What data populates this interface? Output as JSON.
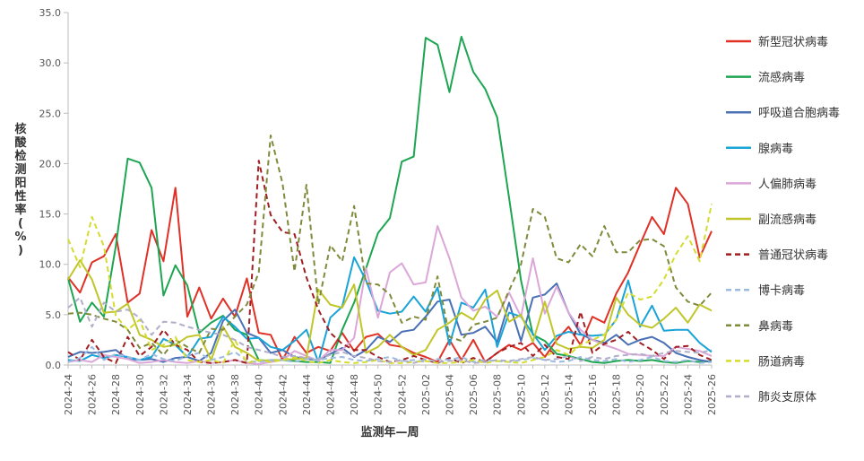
{
  "chart_data": {
    "type": "line",
    "xlabel": "监测年—周",
    "ylabel": "核酸检测阳性率(%)",
    "ylim": [
      0,
      35
    ],
    "yticks": [
      "0.0",
      "5.0",
      "10.0",
      "15.0",
      "20.0",
      "25.0",
      "30.0",
      "35.0"
    ],
    "ytick_values": [
      0,
      5,
      10,
      15,
      20,
      25,
      30,
      35
    ],
    "x": [
      "2024-24",
      "2024-25",
      "2024-26",
      "2024-27",
      "2024-28",
      "2024-29",
      "2024-30",
      "2024-31",
      "2024-32",
      "2024-33",
      "2024-34",
      "2024-35",
      "2024-36",
      "2024-37",
      "2024-38",
      "2024-39",
      "2024-40",
      "2024-41",
      "2024-42",
      "2024-43",
      "2024-44",
      "2024-45",
      "2024-46",
      "2024-47",
      "2024-48",
      "2024-49",
      "2024-50",
      "2024-51",
      "2024-52",
      "2025-01",
      "2025-02",
      "2025-03",
      "2025-04",
      "2025-05",
      "2025-06",
      "2025-07",
      "2025-08",
      "2025-09",
      "2025-10",
      "2025-11",
      "2025-12",
      "2025-13",
      "2025-14",
      "2025-15",
      "2025-16",
      "2025-17",
      "2025-18",
      "2025-19",
      "2025-20",
      "2025-21",
      "2025-22",
      "2025-23",
      "2025-24",
      "2025-25",
      "2025-26"
    ],
    "xtick_labels": [
      "2024-24",
      "2024-26",
      "2024-28",
      "2024-30",
      "2024-32",
      "2024-34",
      "2024-36",
      "2024-38",
      "2024-40",
      "2024-42",
      "2024-44",
      "2024-46",
      "2024-48",
      "2024-50",
      "2024-52",
      "2025-02",
      "2025-04",
      "2025-06",
      "2025-08",
      "2025-10",
      "2025-12",
      "2025-14",
      "2025-16",
      "2025-18",
      "2025-20",
      "2025-22",
      "2025-24",
      "2025-26"
    ],
    "grid": false,
    "legend_position": "right",
    "series": [
      {
        "name": "新型冠状病毒",
        "color": "#e03127",
        "dash": "solid",
        "values": [
          8.7,
          7.2,
          10.2,
          10.8,
          13.0,
          6.2,
          7.1,
          13.4,
          10.3,
          17.6,
          4.8,
          7.7,
          4.6,
          6.6,
          4.8,
          8.6,
          3.2,
          3.0,
          0.5,
          2.8,
          1.2,
          1.8,
          1.4,
          3.2,
          1.4,
          2.8,
          3.1,
          2.0,
          1.8,
          1.2,
          0.8,
          0.3,
          2.5,
          0.5,
          2.5,
          0.3,
          1.2,
          2.0,
          1.5,
          2.2,
          0.8,
          2.5,
          3.8,
          2.0,
          4.8,
          4.2,
          7.1,
          9.2,
          12.0,
          14.7,
          13.0,
          17.6,
          16.0,
          10.7,
          13.3
        ]
      },
      {
        "name": "流感病毒",
        "color": "#1ea552",
        "dash": "solid",
        "values": [
          8.6,
          4.3,
          6.2,
          4.8,
          11.8,
          20.5,
          20.1,
          17.6,
          6.9,
          9.9,
          7.9,
          3.2,
          4.2,
          4.9,
          3.5,
          3.0,
          0.5,
          0.4,
          0.5,
          0.4,
          0.3,
          0.3,
          0.2,
          3.5,
          6.2,
          9.6,
          13.1,
          14.6,
          20.2,
          20.7,
          32.5,
          31.8,
          27.1,
          32.6,
          29.1,
          27.4,
          24.6,
          16.6,
          8.4,
          3.0,
          2.4,
          1.1,
          0.9,
          0.6,
          0.3,
          0.2,
          0.4,
          0.5,
          0.4,
          0.5,
          0.3,
          0.2,
          0.4,
          0.3,
          0.4
        ]
      },
      {
        "name": "呼吸道合胞病毒",
        "color": "#4a70b5",
        "dash": "solid",
        "values": [
          0.8,
          1.3,
          1.2,
          1.3,
          1.5,
          0.6,
          0.5,
          0.6,
          0.3,
          0.7,
          0.8,
          0.4,
          1.2,
          4.4,
          5.5,
          3.2,
          2.7,
          1.2,
          1.5,
          0.8,
          0.6,
          0.5,
          1.1,
          1.7,
          0.8,
          1.5,
          2.8,
          2.3,
          3.3,
          3.5,
          4.8,
          6.3,
          6.5,
          3.0,
          3.2,
          3.8,
          2.3,
          6.2,
          2.4,
          6.7,
          7.0,
          8.1,
          5.2,
          3.1,
          2.5,
          2.2,
          3.0,
          2.0,
          2.5,
          2.8,
          2.2,
          1.2,
          0.8,
          0.5,
          0.3
        ]
      },
      {
        "name": "腺病毒",
        "color": "#1aa3d6",
        "dash": "solid",
        "values": [
          0.5,
          0.4,
          1.0,
          0.7,
          1.0,
          0.8,
          0.5,
          0.8,
          2.6,
          2.0,
          0.8,
          2.6,
          2.8,
          4.8,
          3.8,
          2.6,
          2.7,
          1.8,
          1.5,
          2.4,
          3.5,
          0.3,
          4.7,
          5.8,
          10.7,
          8.4,
          5.4,
          5.1,
          5.3,
          6.8,
          5.3,
          7.7,
          2.0,
          6.2,
          5.7,
          7.5,
          1.8,
          5.2,
          4.8,
          3.1,
          1.5,
          2.9,
          3.3,
          3.0,
          2.9,
          3.0,
          4.5,
          8.4,
          3.8,
          5.9,
          3.4,
          3.5,
          3.5,
          2.2,
          1.3
        ]
      },
      {
        "name": "人偏肺病毒",
        "color": "#dba7d8",
        "dash": "solid",
        "values": [
          0.3,
          0.5,
          0.3,
          1.0,
          0.8,
          0.6,
          0.2,
          0.3,
          0.5,
          0.3,
          0.2,
          0.4,
          0.2,
          0.3,
          0.5,
          0.2,
          0.1,
          0.3,
          0.5,
          1.4,
          0.9,
          0.4,
          1.5,
          1.5,
          2.7,
          9.6,
          4.7,
          9.2,
          10.1,
          8.0,
          8.2,
          13.8,
          10.6,
          6.7,
          5.4,
          5.8,
          4.8,
          7.2,
          4.8,
          10.6,
          5.1,
          7.8,
          5.2,
          3.5,
          2.5,
          2.0,
          1.6,
          1.1,
          1.0,
          0.9,
          0.9,
          1.8,
          1.6,
          1.4,
          0.9
        ]
      },
      {
        "name": "副流感病毒",
        "color": "#c0c62a",
        "dash": "solid",
        "values": [
          8.5,
          10.4,
          8.5,
          5.2,
          5.3,
          6.1,
          3.0,
          2.5,
          1.8,
          2.0,
          2.8,
          3.0,
          0.5,
          3.8,
          1.8,
          1.2,
          0.4,
          0.5,
          0.5,
          0.6,
          0.7,
          7.5,
          6.0,
          5.7,
          8.0,
          1.2,
          1.8,
          3.0,
          1.8,
          1.0,
          1.5,
          3.5,
          4.2,
          5.2,
          4.5,
          6.5,
          7.4,
          4.3,
          5.0,
          2.3,
          6.3,
          2.1,
          1.6,
          1.8,
          1.7,
          2.5,
          6.7,
          5.0,
          4.0,
          3.7,
          4.6,
          5.7,
          4.2,
          6.0,
          5.4
        ]
      },
      {
        "name": "普通冠状病毒",
        "color": "#a01e22",
        "dash": "dashed",
        "values": [
          1.3,
          0.5,
          2.5,
          0.8,
          0.2,
          2.8,
          0.9,
          1.8,
          3.5,
          2.0,
          1.5,
          0.3,
          0.2,
          0.3,
          0.5,
          0.2,
          20.3,
          14.9,
          13.2,
          13.0,
          8.7,
          5.5,
          3.2,
          2.1,
          1.5,
          1.5,
          0.8,
          0.3,
          0.5,
          0.9,
          0.5,
          0.2,
          0.7,
          0.2,
          0.7,
          0.3,
          1.2,
          1.8,
          2.2,
          0.9,
          2.0,
          0.8,
          0.6,
          5.3,
          1.2,
          2.1,
          2.5,
          3.3,
          2.2,
          1.5,
          0.6,
          1.8,
          1.9,
          1.0,
          0.5
        ]
      },
      {
        "name": "博卡病毒",
        "color": "#9cbbe0",
        "dash": "dashed",
        "values": [
          0.3,
          0.7,
          1.8,
          0.5,
          1.1,
          0.8,
          0.5,
          1.1,
          0.6,
          0.4,
          0.9,
          1.2,
          0.5,
          0.8,
          1.3,
          0.4,
          0.3,
          0.5,
          0.5,
          0.3,
          0.6,
          0.5,
          0.7,
          0.8,
          0.5,
          0.4,
          0.6,
          0.8,
          0.4,
          0.5,
          0.3,
          0.6,
          0.5,
          0.8,
          0.3,
          0.5,
          0.4,
          0.3,
          0.5,
          0.7,
          0.5,
          0.3,
          0.4,
          0.8,
          0.5,
          0.4,
          0.6,
          0.3,
          0.5,
          0.8,
          0.4,
          0.3,
          0.5,
          0.2,
          0.3
        ]
      },
      {
        "name": "鼻病毒",
        "color": "#7f8a3a",
        "dash": "dashed",
        "values": [
          5.1,
          5.2,
          5.0,
          4.6,
          4.3,
          3.5,
          1.7,
          2.2,
          1.0,
          2.5,
          1.8,
          1.2,
          3.6,
          3.5,
          4.8,
          6.0,
          9.2,
          22.8,
          18.0,
          9.3,
          17.9,
          6.0,
          11.9,
          10.3,
          15.8,
          8.1,
          8.0,
          7.0,
          4.2,
          4.8,
          4.5,
          8.8,
          2.8,
          2.4,
          4.0,
          4.3,
          4.7,
          7.4,
          10.0,
          15.5,
          14.7,
          10.6,
          10.2,
          12.0,
          10.8,
          13.8,
          11.2,
          11.2,
          12.4,
          12.5,
          11.8,
          7.7,
          6.3,
          5.9,
          7.2
        ]
      },
      {
        "name": "肠道病毒",
        "color": "#d4dc30",
        "dash": "dashed",
        "values": [
          12.5,
          9.7,
          14.7,
          11.8,
          4.9,
          3.5,
          4.5,
          1.5,
          2.0,
          2.8,
          0.5,
          0.3,
          0.5,
          0.2,
          2.5,
          0.2,
          0.5,
          0.3,
          0.5,
          0.8,
          0.4,
          0.2,
          0.5,
          0.3,
          0.2,
          0.3,
          0.5,
          0.2,
          0.2,
          0.3,
          0.4,
          0.2,
          0.2,
          0.3,
          0.5,
          0.2,
          0.4,
          0.3,
          0.2,
          0.5,
          0.8,
          1.5,
          1.0,
          2.0,
          2.5,
          3.0,
          4.5,
          7.2,
          6.5,
          6.8,
          8.5,
          11.0,
          12.8,
          10.3,
          16.0
        ]
      },
      {
        "name": "肺炎支原体",
        "color": "#b0aec9",
        "dash": "dashed",
        "values": [
          5.7,
          6.7,
          3.8,
          6.2,
          5.3,
          5.5,
          4.7,
          3.0,
          4.3,
          4.2,
          3.8,
          3.5,
          3.2,
          3.0,
          2.5,
          1.8,
          1.5,
          1.2,
          0.8,
          0.9,
          0.7,
          0.6,
          1.0,
          1.3,
          0.9,
          0.7,
          0.4,
          0.3,
          0.5,
          0.2,
          0.6,
          0.3,
          0.4,
          0.5,
          0.2,
          0.3,
          0.5,
          0.4,
          0.6,
          0.8,
          0.5,
          0.6,
          0.9,
          0.4,
          0.8,
          0.6,
          0.9,
          1.0,
          1.1,
          0.9,
          1.2,
          1.4,
          1.3,
          1.2,
          1.5
        ]
      }
    ]
  }
}
